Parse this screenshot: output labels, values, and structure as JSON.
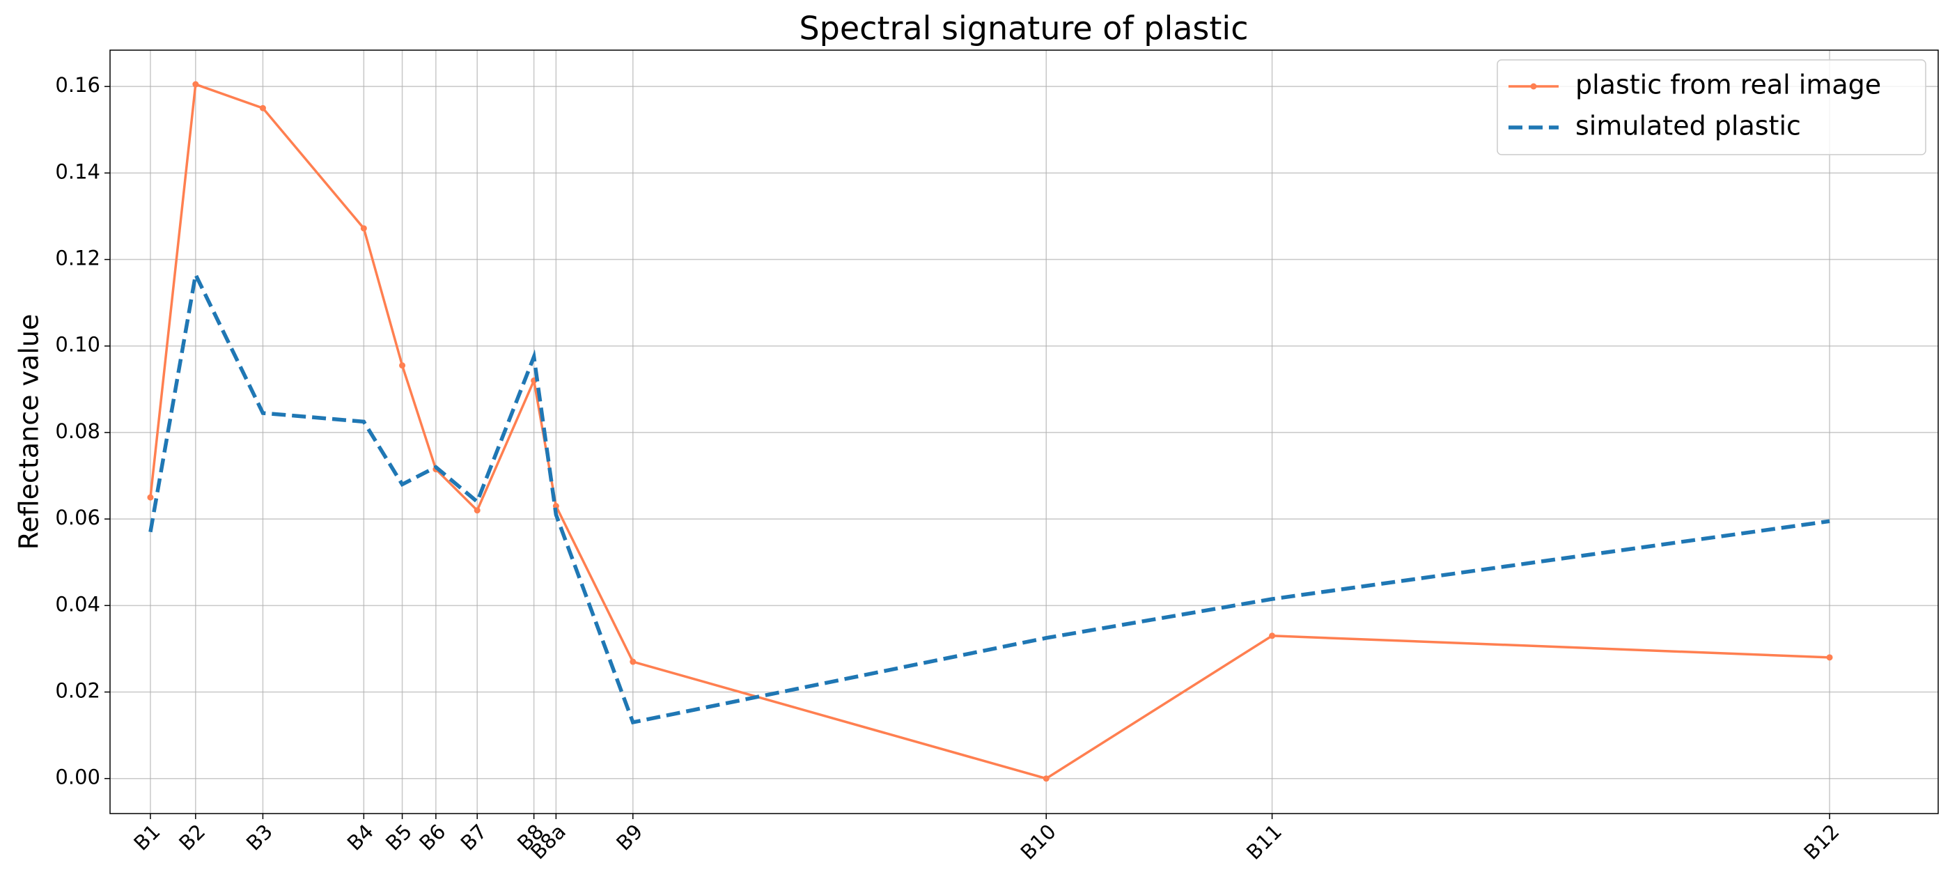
{
  "chart_data": {
    "type": "line",
    "title": "Spectral signature of plastic",
    "y_label": "Reflectance value",
    "x": [
      443,
      490,
      560,
      665,
      705,
      740,
      783,
      842,
      865,
      945,
      1375,
      1610,
      2190
    ],
    "xlim": [
      401,
      2303
    ],
    "xticks": [
      {
        "value": 443,
        "label": "B1"
      },
      {
        "value": 490,
        "label": "B2"
      },
      {
        "value": 560,
        "label": "B3"
      },
      {
        "value": 665,
        "label": "B4"
      },
      {
        "value": 705,
        "label": "B5"
      },
      {
        "value": 740,
        "label": "B6"
      },
      {
        "value": 783,
        "label": "B7"
      },
      {
        "value": 842,
        "label": "B8"
      },
      {
        "value": 865,
        "label": "B8a"
      },
      {
        "value": 945,
        "label": "B9"
      },
      {
        "value": 1375,
        "label": "B10"
      },
      {
        "value": 1610,
        "label": "B11"
      },
      {
        "value": 2190,
        "label": "B12"
      }
    ],
    "ylim": [
      -0.0081,
      0.1684
    ],
    "yticks": [
      {
        "value": 0,
        "label": "0.00"
      },
      {
        "value": 0.02,
        "label": "0.02"
      },
      {
        "value": 0.04,
        "label": "0.04"
      },
      {
        "value": 0.06,
        "label": "0.06"
      },
      {
        "value": 0.08,
        "label": "0.08"
      },
      {
        "value": 0.1,
        "label": "0.10"
      },
      {
        "value": 0.12,
        "label": "0.12"
      },
      {
        "value": 0.14,
        "label": "0.14"
      },
      {
        "value": 0.16,
        "label": "0.16"
      }
    ],
    "grid": true,
    "legend": "upper right",
    "series": [
      {
        "name": "plastic from real image",
        "color": "#ff7f50",
        "style": "solid",
        "marker": true,
        "values": [
          0.065,
          0.1605,
          0.155,
          0.1272,
          0.0955,
          0.0715,
          0.062,
          0.092,
          0.063,
          0.027,
          0.0,
          0.033,
          0.028
        ]
      },
      {
        "name": "simulated plastic",
        "color": "#1f77b4",
        "style": "dashed",
        "marker": false,
        "values": [
          0.057,
          0.1165,
          0.0845,
          0.0825,
          0.068,
          0.072,
          0.064,
          0.0975,
          0.061,
          0.013,
          0.0325,
          0.0415,
          0.0595
        ]
      }
    ]
  }
}
